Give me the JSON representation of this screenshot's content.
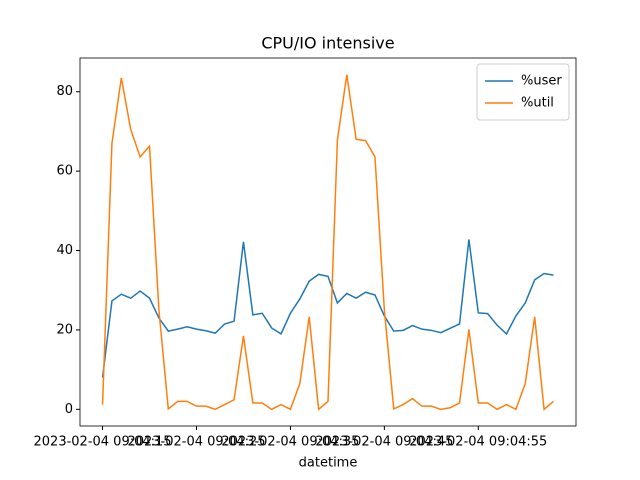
{
  "chart_data": {
    "type": "line",
    "title": "CPU/IO intensive",
    "x_label": "datetime",
    "x": [
      "2023-02-04 09:04:15",
      "2023-02-04 09:04:16",
      "2023-02-04 09:04:17",
      "2023-02-04 09:04:18",
      "2023-02-04 09:04:19",
      "2023-02-04 09:04:20",
      "2023-02-04 09:04:21",
      "2023-02-04 09:04:22",
      "2023-02-04 09:04:23",
      "2023-02-04 09:04:24",
      "2023-02-04 09:04:25",
      "2023-02-04 09:04:26",
      "2023-02-04 09:04:27",
      "2023-02-04 09:04:28",
      "2023-02-04 09:04:29",
      "2023-02-04 09:04:30",
      "2023-02-04 09:04:31",
      "2023-02-04 09:04:32",
      "2023-02-04 09:04:33",
      "2023-02-04 09:04:34",
      "2023-02-04 09:04:35",
      "2023-02-04 09:04:36",
      "2023-02-04 09:04:37",
      "2023-02-04 09:04:38",
      "2023-02-04 09:04:39",
      "2023-02-04 09:04:40",
      "2023-02-04 09:04:41",
      "2023-02-04 09:04:42",
      "2023-02-04 09:04:43",
      "2023-02-04 09:04:44",
      "2023-02-04 09:04:45",
      "2023-02-04 09:04:46",
      "2023-02-04 09:04:47",
      "2023-02-04 09:04:48",
      "2023-02-04 09:04:49",
      "2023-02-04 09:04:50",
      "2023-02-04 09:04:51",
      "2023-02-04 09:04:52",
      "2023-02-04 09:04:53",
      "2023-02-04 09:04:54",
      "2023-02-04 09:04:55",
      "2023-02-04 09:04:56",
      "2023-02-04 09:04:57",
      "2023-02-04 09:04:58",
      "2023-02-04 09:04:59",
      "2023-02-04 09:05:00",
      "2023-02-04 09:05:01",
      "2023-02-04 09:05:02",
      "2023-02-04 09:05:03"
    ],
    "series": [
      {
        "name": "%user",
        "color": "#1f77b4",
        "values": [
          8,
          27.3,
          29,
          28,
          29.8,
          28,
          23,
          19.7,
          20.2,
          20.8,
          20.2,
          19.8,
          19.2,
          21.5,
          22.2,
          42.2,
          23.8,
          24.2,
          20.5,
          19,
          24.2,
          27.8,
          32.3,
          34,
          33.5,
          26.8,
          29.2,
          28,
          29.5,
          28.8,
          23.5,
          19.7,
          19.9,
          21.1,
          20.2,
          19.9,
          19.3,
          20.4,
          21.5,
          42.8,
          24.3,
          24.1,
          21.2,
          19,
          23.5,
          26.8,
          32.6,
          34.2,
          33.8
        ]
      },
      {
        "name": "%util",
        "color": "#ff7f0e",
        "values": [
          1.2,
          67,
          83.5,
          70.5,
          63.6,
          66.3,
          25,
          0.1,
          2,
          2,
          0.8,
          0.8,
          0,
          1.2,
          2.4,
          18.5,
          1.6,
          1.6,
          0,
          1.2,
          0,
          6.5,
          23.3,
          0,
          2,
          67.8,
          84.3,
          68,
          67.7,
          63.6,
          25,
          0.1,
          1.2,
          2.7,
          0.8,
          0.8,
          0,
          0.4,
          1.6,
          20.1,
          1.6,
          1.6,
          0,
          1.2,
          0,
          6.5,
          23.3,
          0,
          2
        ]
      }
    ],
    "xlim": [
      "2023-02-04 09:04:12.6",
      "2023-02-04 09:05:05.4"
    ],
    "xticks": [
      "2023-02-04 09:04:15",
      "2023-02-04 09:04:25",
      "2023-02-04 09:04:35",
      "2023-02-04 09:04:45",
      "2023-02-04 09:04:55"
    ],
    "ylim": [
      -4.2,
      88.5
    ],
    "yticks": [
      0,
      20,
      40,
      60,
      80
    ],
    "legend": "upper right"
  }
}
